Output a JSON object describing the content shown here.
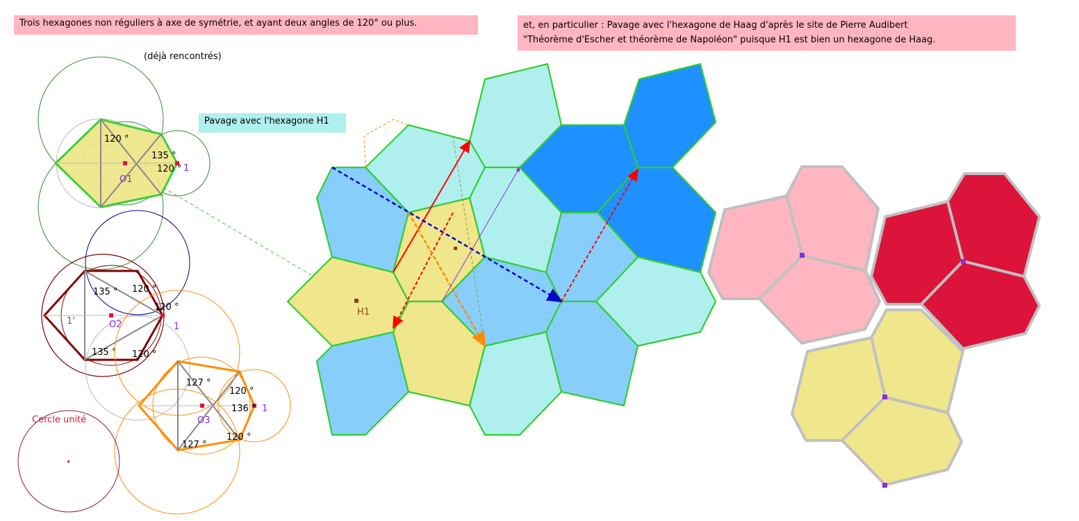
{
  "notes": {
    "left_title": "Trois hexagones non réguliers à axe de symétrie, et ayant deux angles de 120° ou plus.",
    "right_line1": "et, en particulier : Pavage avec l'hexagone de Haag d'après le site de Pierre Audibert",
    "right_line2": "\"Théorème d'Escher et théorème de Napoléon\" puisque H1 est bien un hexagone de Haag.",
    "pavage_h1": "Pavage avec l'hexagone H1",
    "deja": "(déjà rencontrés)",
    "cercle_unite": "Cercle unité"
  },
  "hexagon1": {
    "center_label": "O1",
    "angle_a": "120 °",
    "angle_b": "135 °",
    "angle_c": "120 °",
    "point_label": "1"
  },
  "hexagon2": {
    "center_label": "O2",
    "angle_a": "135 °",
    "angle_b": "120 °",
    "angle_c": "120 °",
    "angle_d": "135 °",
    "angle_e": "120 °",
    "point_label": "1",
    "point_label_left": "1'"
  },
  "hexagon3": {
    "center_label": "O3",
    "angle_a": "127 °",
    "angle_b": "120 °",
    "angle_c": "136 °",
    "angle_d": "127 °",
    "angle_e": "120 °",
    "point_label": "1"
  },
  "tiling": {
    "label_h1": "H1"
  },
  "colors": {
    "pink": "#ffb6c1",
    "cyan": "#aff0ee",
    "sky": "#87cefa",
    "blue": "#1e90ff",
    "khaki": "#f0e68c",
    "crimson": "#dc143c",
    "green": "#32cd32",
    "orange": "#ff8c00",
    "maroon": "#800000"
  }
}
